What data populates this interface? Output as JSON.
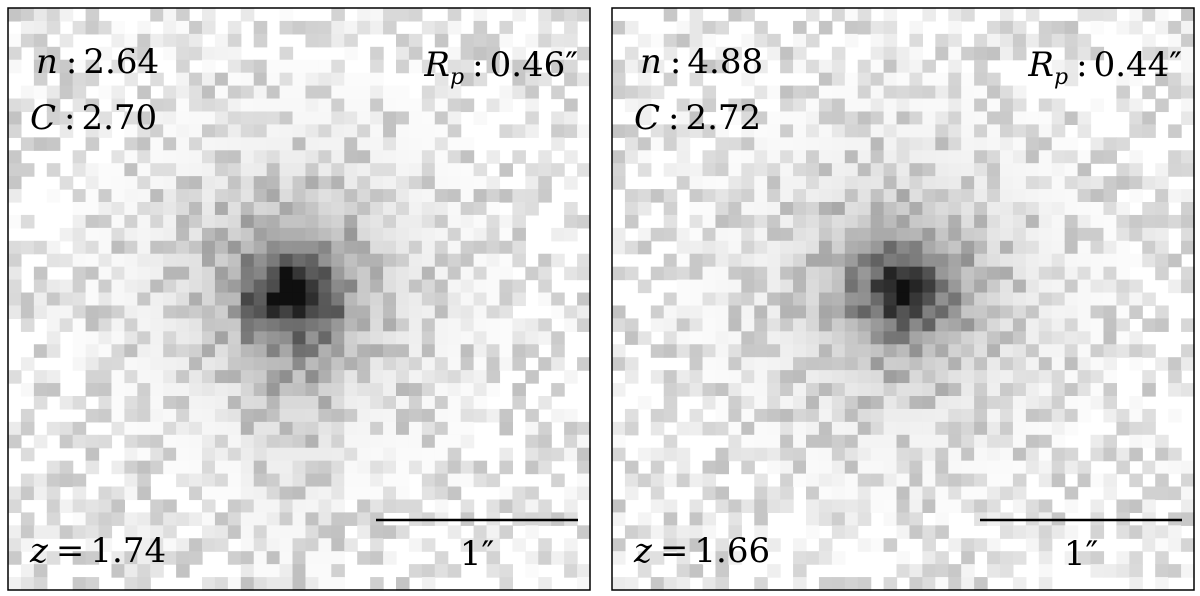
{
  "panels": [
    {
      "n": {
        "symbol": "n",
        "sep": ":",
        "value": "2.64"
      },
      "C": {
        "symbol": "C",
        "sep": ":",
        "value": "2.70"
      },
      "Rp": {
        "symbol": "R",
        "sub": "p",
        "sep": ":",
        "value": "0.46″"
      },
      "z": {
        "symbol": "z",
        "sep": "=",
        "value": "1.74"
      },
      "scale": "1″"
    },
    {
      "n": {
        "symbol": "n",
        "sep": ":",
        "value": "4.88"
      },
      "C": {
        "symbol": "C",
        "sep": ":",
        "value": "2.72"
      },
      "Rp": {
        "symbol": "R",
        "sub": "p",
        "sep": ":",
        "value": "0.44″"
      },
      "z": {
        "symbol": "z",
        "sep": "=",
        "value": "1.66"
      },
      "scale": "1″"
    }
  ]
}
